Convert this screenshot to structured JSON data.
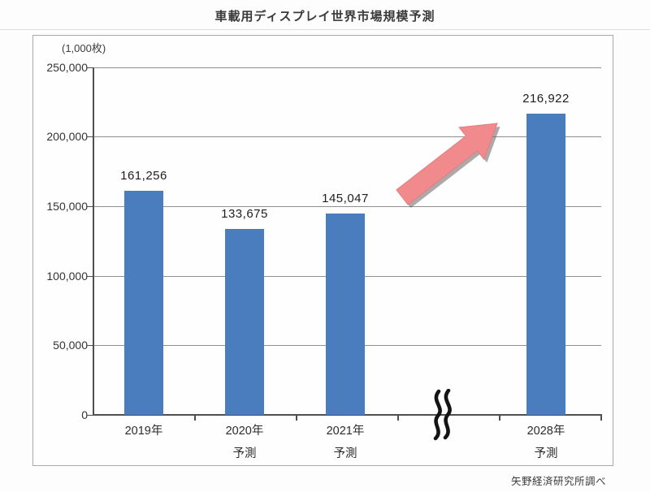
{
  "chart_data": {
    "type": "bar",
    "title": "車載用ディスプレイ世界市場規模予測",
    "unit_label": "(1,000枚)",
    "categories": [
      "2019年",
      "2020年 予測",
      "2021年 予測",
      "2028年 予測"
    ],
    "category_lines": [
      [
        "2019年",
        ""
      ],
      [
        "2020年",
        "予測"
      ],
      [
        "2021年",
        "予測"
      ],
      [
        "2028年",
        "予測"
      ]
    ],
    "values": [
      161256,
      133675,
      145047,
      216922
    ],
    "value_labels": [
      "161,256",
      "133,675",
      "145,047",
      "216,922"
    ],
    "ylabel": "(1,000枚)",
    "xlabel": "",
    "ylim": [
      0,
      250000
    ],
    "y_ticks": [
      "250,000",
      "200,000",
      "150,000",
      "100,000",
      "50,000",
      "0"
    ],
    "grid": true,
    "legend_position": "none",
    "axis_break": "between 2021年予測 and 2028年予測",
    "annotations": [
      "upward growth arrow pointing to 2028 bar"
    ],
    "bar_color": "#4a7dbe",
    "arrow_color": "#f08a8c",
    "arrow_shadow_color": "#6a6361",
    "source": "矢野経済研究所調べ"
  }
}
